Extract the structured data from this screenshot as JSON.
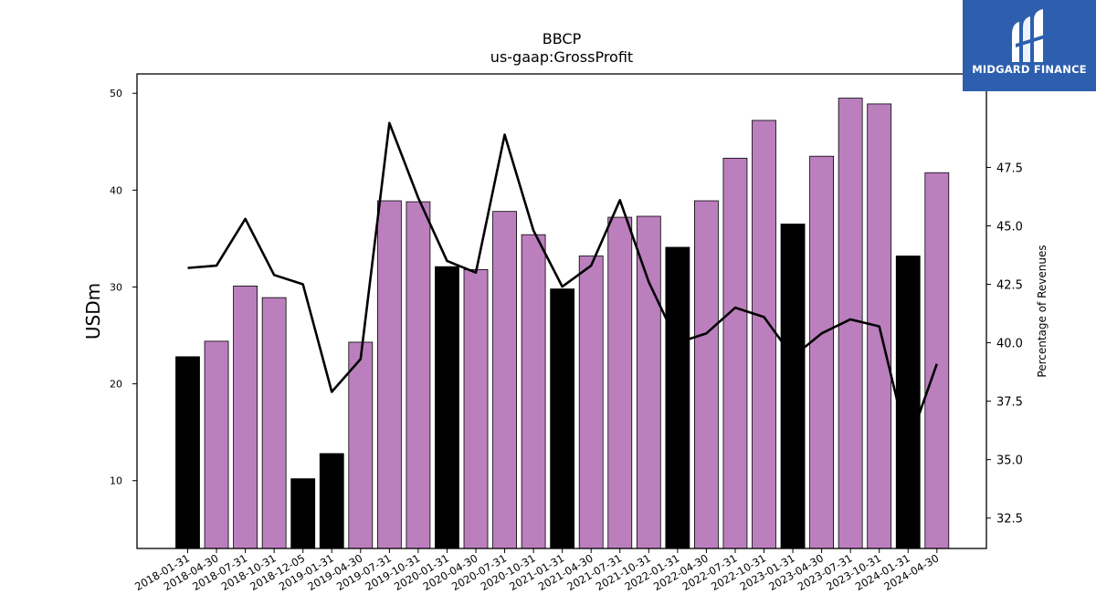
{
  "chart_data": {
    "type": "bar",
    "title": "BBCP",
    "subtitle": "us-gaap:GrossProfit",
    "ylabel": "USDm",
    "y2label": "Percentage of Revenues",
    "ylim": [
      3,
      52
    ],
    "y2lim": [
      31.2,
      51.5
    ],
    "yticks": [
      10,
      20,
      30,
      40,
      50
    ],
    "y2ticks": [
      "32.5",
      "35.0",
      "37.5",
      "40.0",
      "42.5",
      "45.0",
      "47.5"
    ],
    "categories": [
      "2018-01-31",
      "2018-04-30",
      "2018-07-31",
      "2018-10-31",
      "2018-12-05",
      "2019-01-31",
      "2019-04-30",
      "2019-07-31",
      "2019-10-31",
      "2020-01-31",
      "2020-04-30",
      "2020-07-31",
      "2020-10-31",
      "2021-01-31",
      "2021-04-30",
      "2021-07-31",
      "2021-10-31",
      "2022-01-31",
      "2022-04-30",
      "2022-07-31",
      "2022-10-31",
      "2023-01-31",
      "2023-04-30",
      "2023-07-31",
      "2023-10-31",
      "2024-01-31",
      "2024-04-30"
    ],
    "series": [
      {
        "type": "bar",
        "values": [
          22.8,
          24.4,
          30.1,
          28.9,
          10.2,
          12.8,
          24.3,
          38.9,
          38.8,
          32.1,
          31.8,
          37.8,
          35.4,
          29.8,
          33.2,
          37.2,
          37.3,
          34.1,
          38.9,
          43.3,
          47.2,
          36.5,
          43.5,
          49.5,
          48.9,
          33.2,
          41.8
        ],
        "colors": [
          "#000000",
          "#bb7fbe",
          "#bb7fbe",
          "#bb7fbe",
          "#000000",
          "#000000",
          "#bb7fbe",
          "#bb7fbe",
          "#bb7fbe",
          "#000000",
          "#bb7fbe",
          "#bb7fbe",
          "#bb7fbe",
          "#000000",
          "#bb7fbe",
          "#bb7fbe",
          "#bb7fbe",
          "#000000",
          "#bb7fbe",
          "#bb7fbe",
          "#bb7fbe",
          "#000000",
          "#bb7fbe",
          "#bb7fbe",
          "#bb7fbe",
          "#000000",
          "#bb7fbe"
        ]
      },
      {
        "type": "line",
        "axis": "right",
        "color": "#000000",
        "values": [
          43.2,
          43.3,
          45.3,
          42.9,
          42.5,
          37.9,
          39.3,
          49.4,
          46.2,
          43.5,
          43.0,
          48.9,
          44.8,
          42.4,
          43.3,
          46.1,
          42.6,
          40.0,
          40.4,
          41.5,
          41.1,
          39.4,
          40.4,
          41.0,
          40.7,
          35.6,
          39.1
        ]
      }
    ],
    "grid": false
  },
  "logo": {
    "text": "MIDGARD FINANCE",
    "background": "#2d5fae"
  }
}
